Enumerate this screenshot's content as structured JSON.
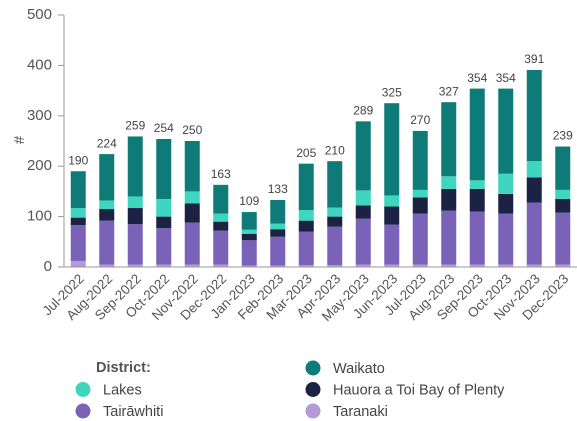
{
  "chart_data": {
    "type": "stacked_bar",
    "categories": [
      "Jul-2022",
      "Aug-2022",
      "Sep-2022",
      "Oct-2022",
      "Nov-2022",
      "Dec-2022",
      "Jan-2023",
      "Feb-2023",
      "Mar-2023",
      "Apr-2023",
      "May-2023",
      "Jun-2023",
      "Jul-2023",
      "Aug-2023",
      "Sep-2023",
      "Oct-2023",
      "Nov-2023",
      "Dec-2023"
    ],
    "series": [
      {
        "name": "Taranaki",
        "color": "#b49ad6",
        "values": [
          12,
          5,
          5,
          5,
          5,
          5,
          3,
          3,
          4,
          4,
          5,
          5,
          5,
          5,
          5,
          5,
          5,
          5
        ]
      },
      {
        "name": "Tairāwhiti",
        "color": "#7a62b8",
        "values": [
          71,
          87,
          80,
          72,
          83,
          67,
          50,
          57,
          66,
          76,
          91,
          79,
          101,
          107,
          105,
          101,
          123,
          103
        ]
      },
      {
        "name": "Hauora a Toi Bay of Plenty",
        "color": "#1c2244",
        "values": [
          15,
          23,
          32,
          23,
          38,
          18,
          13,
          15,
          22,
          20,
          26,
          36,
          32,
          43,
          45,
          39,
          50,
          27
        ]
      },
      {
        "name": "Lakes",
        "color": "#3fd6c0",
        "values": [
          19,
          17,
          23,
          35,
          24,
          16,
          8,
          11,
          21,
          18,
          30,
          22,
          15,
          25,
          17,
          40,
          32,
          18
        ]
      },
      {
        "name": "Waikato",
        "color": "#0f7b78",
        "values": [
          73,
          92,
          119,
          119,
          100,
          57,
          35,
          47,
          92,
          92,
          137,
          183,
          117,
          147,
          182,
          169,
          181,
          86
        ]
      }
    ],
    "totals": [
      190,
      224,
      259,
      254,
      250,
      163,
      109,
      133,
      205,
      210,
      289,
      325,
      270,
      327,
      354,
      354,
      391,
      239
    ],
    "y_label": "#",
    "legend_title": "District:",
    "ylim": [
      0,
      500
    ],
    "yticks": [
      0,
      100,
      200,
      300,
      400,
      500
    ]
  }
}
